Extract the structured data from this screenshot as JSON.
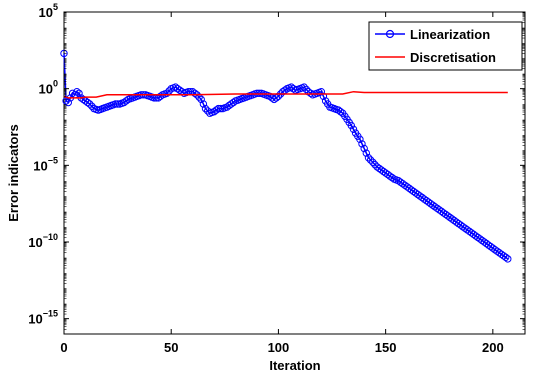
{
  "chart_data": {
    "type": "line",
    "xlabel": "Iteration",
    "ylabel": "Error indicators",
    "xlim": [
      0,
      215
    ],
    "ylim_exponent": [
      -16,
      5
    ],
    "y_scale": "log",
    "x_ticks": [
      "0",
      "50",
      "100",
      "150",
      "200"
    ],
    "x_tick_values": [
      0,
      50,
      100,
      150,
      200
    ],
    "y_tick_exponents": [
      "5",
      "0",
      "−5",
      "−10",
      "−15"
    ],
    "y_tick_exponent_values": [
      5,
      0,
      -5,
      -10,
      -15
    ],
    "y_tick_base": "10",
    "legend_position": "top-right",
    "grid": false,
    "series": [
      {
        "name": "Linearization",
        "color": "#0000ff",
        "marker": "circle",
        "log10_values": {
          "x": [
            0,
            1,
            2,
            3,
            4,
            5,
            6,
            7,
            8,
            10,
            12,
            14,
            16,
            18,
            20,
            22,
            24,
            26,
            28,
            30,
            32,
            34,
            36,
            38,
            40,
            42,
            44,
            46,
            48,
            50,
            52,
            54,
            56,
            58,
            60,
            62,
            64,
            66,
            68,
            70,
            72,
            74,
            76,
            78,
            80,
            82,
            84,
            86,
            88,
            90,
            92,
            94,
            96,
            98,
            100,
            102,
            104,
            106,
            108,
            110,
            112,
            114,
            116,
            118,
            120,
            122,
            124,
            126,
            128,
            130,
            132,
            134,
            136,
            138,
            140,
            142,
            144,
            146,
            148,
            150,
            152,
            154,
            156,
            158,
            160,
            170,
            180,
            190,
            200,
            207
          ],
          "y": [
            2.3,
            -0.8,
            -0.9,
            -0.6,
            -0.3,
            -0.4,
            -0.2,
            -0.3,
            -0.6,
            -0.8,
            -1.0,
            -1.3,
            -1.4,
            -1.3,
            -1.2,
            -1.1,
            -1.0,
            -1.0,
            -0.9,
            -0.7,
            -0.6,
            -0.5,
            -0.4,
            -0.4,
            -0.5,
            -0.6,
            -0.6,
            -0.4,
            -0.3,
            0.0,
            0.1,
            -0.1,
            -0.3,
            -0.2,
            -0.2,
            -0.4,
            -0.7,
            -1.3,
            -1.6,
            -1.5,
            -1.3,
            -1.3,
            -1.2,
            -1.0,
            -0.8,
            -0.7,
            -0.6,
            -0.5,
            -0.4,
            -0.3,
            -0.3,
            -0.4,
            -0.5,
            -0.7,
            -0.5,
            -0.2,
            0.0,
            0.1,
            -0.1,
            0.0,
            0.1,
            -0.2,
            -0.4,
            -0.3,
            -0.2,
            -0.8,
            -1.2,
            -1.3,
            -1.4,
            -1.6,
            -2.0,
            -2.4,
            -2.9,
            -3.3,
            -3.9,
            -4.5,
            -4.8,
            -5.1,
            -5.3,
            -5.5,
            -5.7,
            -5.9,
            -6.0,
            -6.2,
            -6.4,
            -7.4,
            -8.4,
            -9.4,
            -10.4,
            -11.1
          ]
        }
      },
      {
        "name": "Discretisation",
        "color": "#ff0000",
        "marker": "none",
        "log10_values": {
          "x": [
            0,
            2,
            4,
            8,
            10,
            15,
            20,
            40,
            60,
            80,
            100,
            120,
            130,
            135,
            140,
            207
          ],
          "y": [
            -0.5,
            -0.6,
            -0.6,
            -0.6,
            -0.55,
            -0.55,
            -0.4,
            -0.4,
            -0.4,
            -0.35,
            -0.35,
            -0.35,
            -0.35,
            -0.2,
            -0.25,
            -0.25
          ]
        }
      }
    ]
  }
}
